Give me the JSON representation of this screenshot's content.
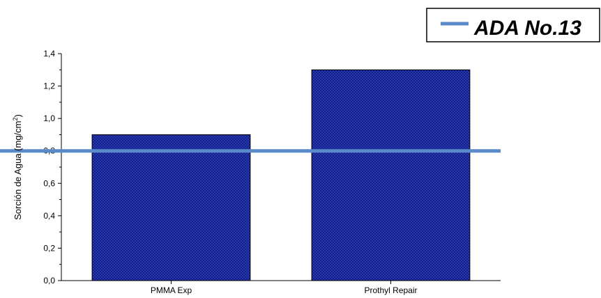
{
  "chart_data": {
    "type": "bar",
    "categories": [
      "PMMA Exp",
      "Prothyl Repair"
    ],
    "values": [
      0.9,
      1.3
    ],
    "ylabel": "Sorción de Agua (mg/cm",
    "ylabel_superscript": "2",
    "ylabel_suffix": ")",
    "ylim": [
      0,
      1.4
    ],
    "yticks": [
      "0,0",
      "0,2",
      "0,4",
      "0,6",
      "0,8",
      "1,0",
      "1,2",
      "1,4"
    ],
    "bar_color": "#0d1a8c",
    "reference_line": {
      "name": "ADA No.13",
      "value": 0.8,
      "color": "#5b8ac9"
    },
    "legend_position": "top-right",
    "grid": false
  }
}
